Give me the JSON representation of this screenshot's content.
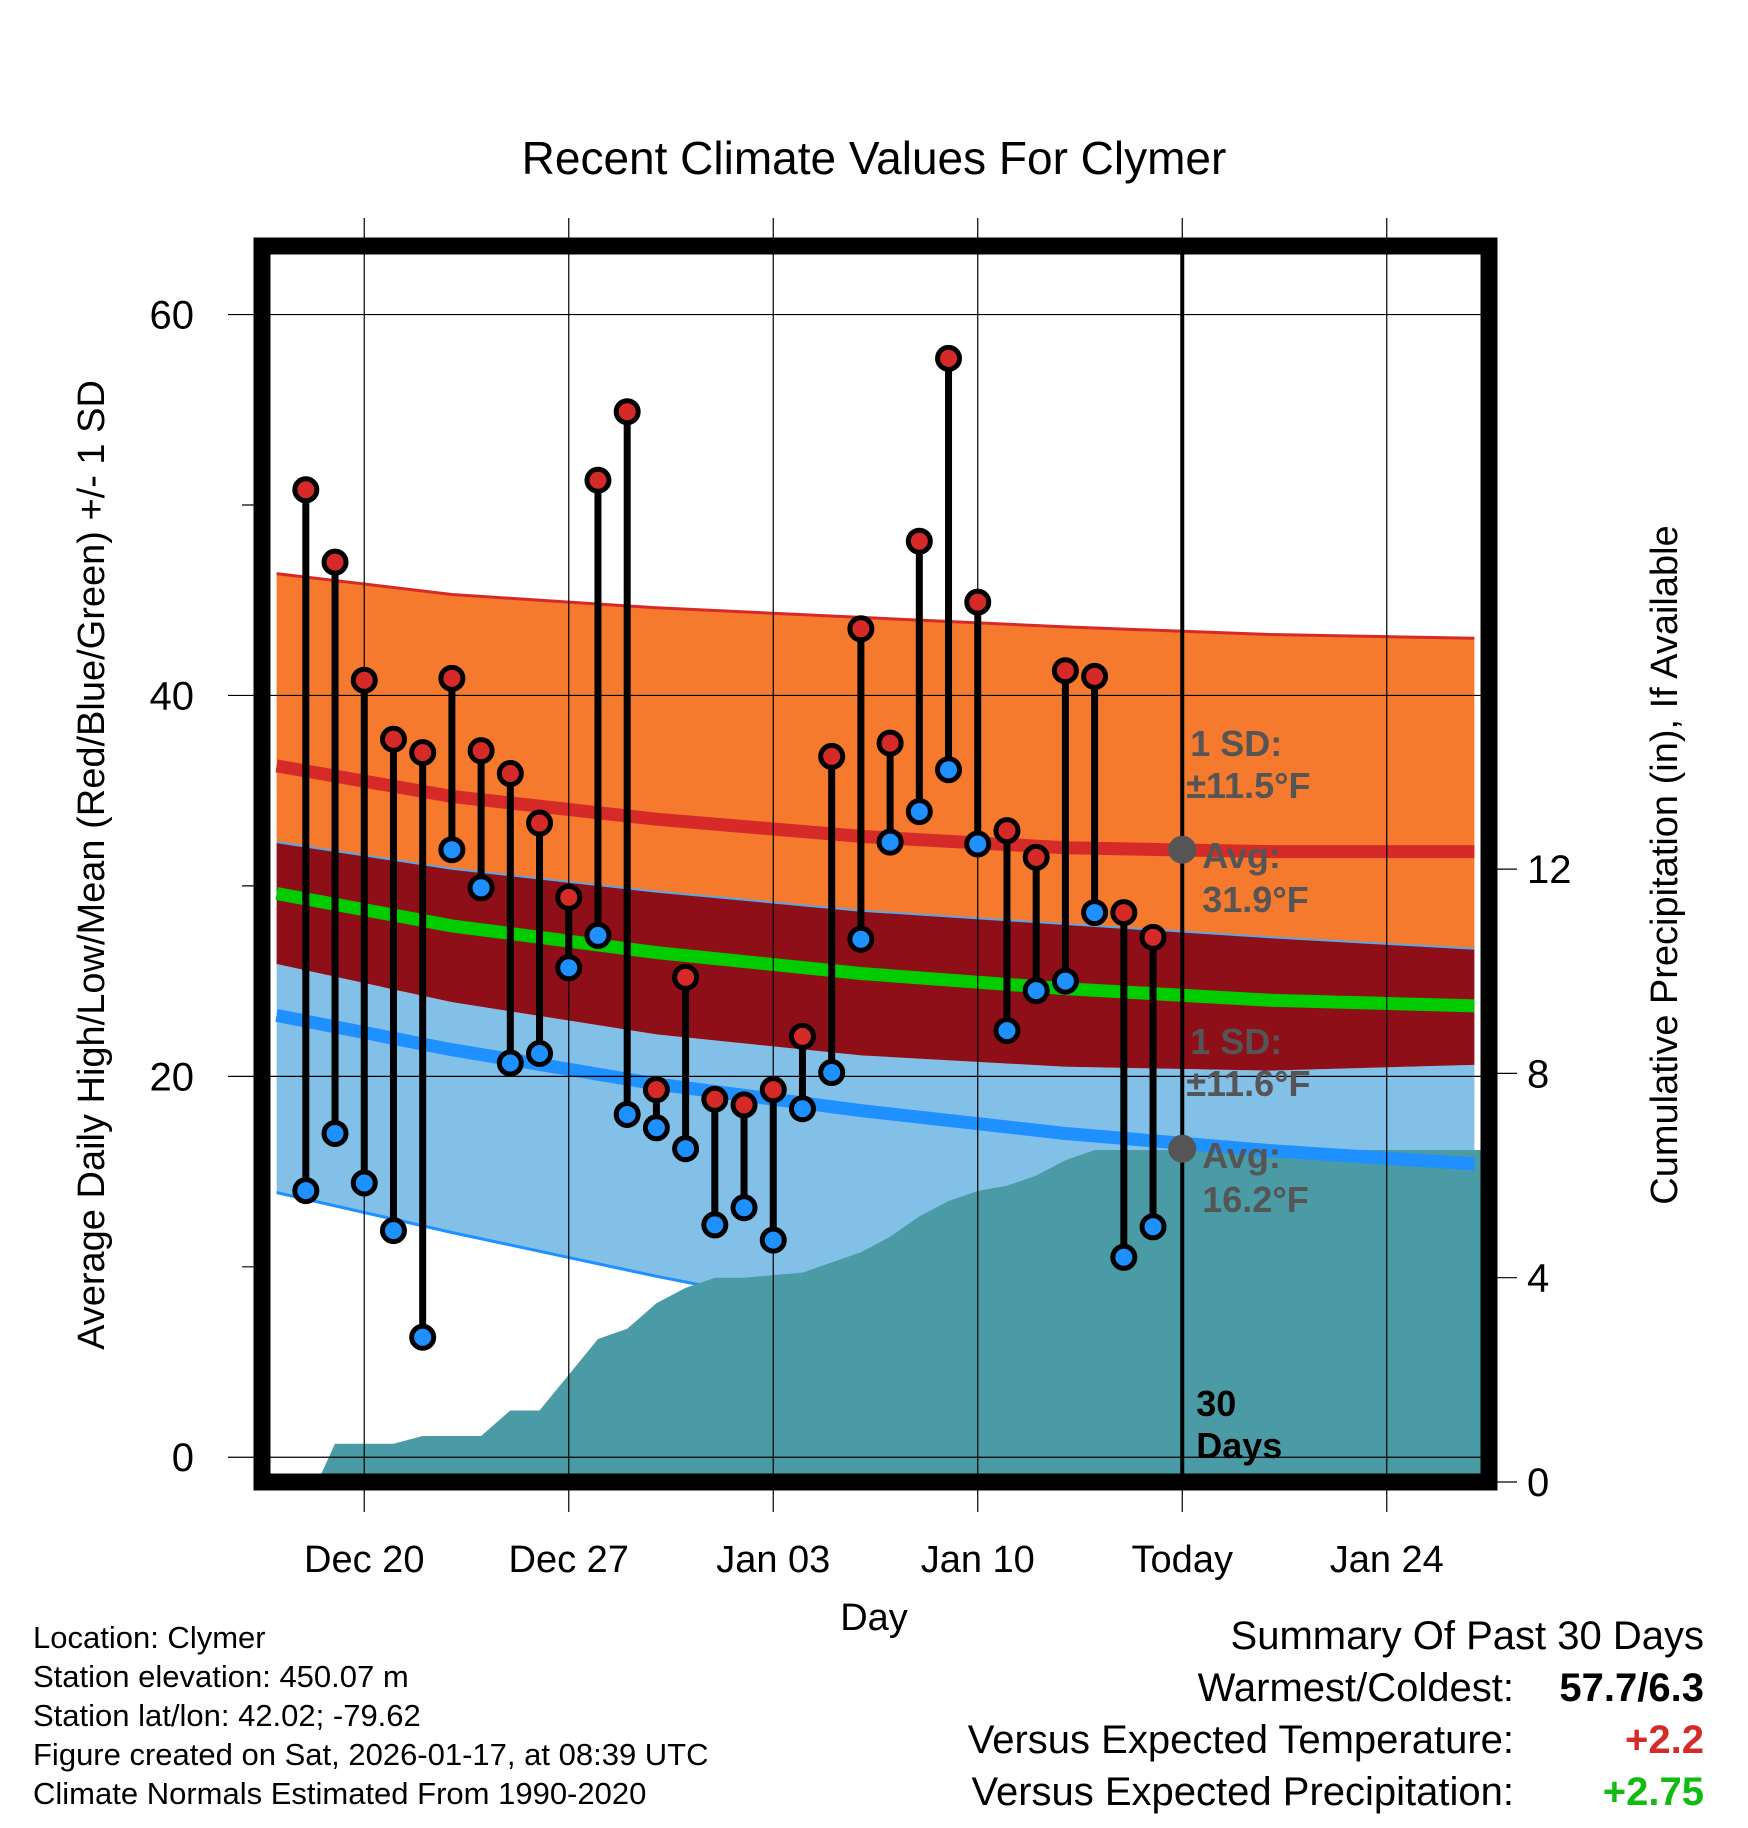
{
  "chart_data": {
    "type": "line",
    "title": "Recent Climate Values For Clymer",
    "xlabel": "Day",
    "ylabel": "Average Daily High/Low/Mean (Red/Blue/Green) +/- 1 SD",
    "ylabel_right": "Cumulative Precipitation (in), If Available",
    "x_range": [
      -3.5,
      38.5
    ],
    "ylim": [
      -1.3,
      63.6
    ],
    "ylim_right": [
      0,
      24.2
    ],
    "x_ticks": [
      {
        "x": 0,
        "label": "Dec 20"
      },
      {
        "x": 7,
        "label": "Dec 27"
      },
      {
        "x": 14,
        "label": "Jan 03"
      },
      {
        "x": 21,
        "label": "Jan 10"
      },
      {
        "x": 28,
        "label": "Today"
      },
      {
        "x": 35,
        "label": "Jan 24"
      }
    ],
    "y_ticks": [
      0,
      20,
      40,
      60
    ],
    "y_minor_ticks": [
      10,
      30,
      50
    ],
    "y_ticks_right": [
      0,
      4,
      8,
      12
    ],
    "today_x": 28,
    "today_label": "30\nDays",
    "normal_high": {
      "x": [
        -3,
        3,
        10,
        17,
        24,
        31,
        38
      ],
      "mean": [
        36.3,
        34.7,
        33.5,
        32.6,
        32.0,
        31.8,
        31.8
      ],
      "upper": [
        46.4,
        45.3,
        44.6,
        44.1,
        43.6,
        43.2,
        43.0
      ],
      "lower": [
        32.3,
        30.9,
        29.7,
        28.7,
        28.0,
        27.3,
        26.7
      ]
    },
    "normal_mean": {
      "x": [
        -3,
        3,
        10,
        17,
        24,
        31,
        38
      ],
      "values": [
        29.6,
        27.9,
        26.5,
        25.4,
        24.6,
        24.0,
        23.7
      ]
    },
    "normal_low": {
      "x": [
        -3,
        3,
        10,
        17,
        24,
        31,
        38
      ],
      "mean": [
        23.2,
        21.4,
        19.6,
        18.2,
        17.0,
        16.1,
        15.4
      ],
      "upper": [
        25.9,
        23.9,
        22.2,
        21.1,
        20.5,
        20.3,
        20.6
      ],
      "lower": [
        13.9,
        11.8,
        9.5,
        7.4,
        5.6,
        4.5,
        3.8
      ]
    },
    "precip": {
      "x": [
        -1.6,
        -1,
        1,
        2,
        3,
        4,
        5,
        6,
        7,
        8,
        9,
        10,
        11,
        12,
        13,
        14,
        15,
        16,
        17,
        18,
        19,
        20,
        21,
        22,
        23,
        24,
        25,
        26,
        27,
        28,
        38.5
      ],
      "values": [
        0,
        0.75,
        0.75,
        0.9,
        0.9,
        0.9,
        1.4,
        1.4,
        2.1,
        2.8,
        3.0,
        3.5,
        3.8,
        4.0,
        4.0,
        4.05,
        4.1,
        4.3,
        4.5,
        4.8,
        5.2,
        5.5,
        5.7,
        5.8,
        6.0,
        6.3,
        6.5,
        6.5,
        6.5,
        6.5,
        6.5
      ]
    },
    "observed": {
      "days": [
        -2,
        -1,
        0,
        1,
        2,
        3,
        4,
        5,
        6,
        7,
        8,
        9,
        10,
        11,
        12,
        13,
        14,
        15,
        16,
        17,
        18,
        19,
        20,
        21,
        22,
        23,
        24,
        25,
        26,
        27
      ],
      "high": [
        50.8,
        47.0,
        40.8,
        37.7,
        37.0,
        40.9,
        37.1,
        35.9,
        33.3,
        29.4,
        51.3,
        54.9,
        19.3,
        25.2,
        18.8,
        18.5,
        19.3,
        22.1,
        36.8,
        43.5,
        37.5,
        48.1,
        57.7,
        44.9,
        32.9,
        31.5,
        41.3,
        41.0,
        28.6,
        27.3
      ],
      "low": [
        14.0,
        17.0,
        14.4,
        11.9,
        6.3,
        31.9,
        29.9,
        20.7,
        21.2,
        25.7,
        27.4,
        18.0,
        17.3,
        16.2,
        12.2,
        13.1,
        11.4,
        18.3,
        20.2,
        27.2,
        32.3,
        33.9,
        36.1,
        32.2,
        22.4,
        24.5,
        25.0,
        28.6,
        10.5,
        12.1
      ]
    },
    "annotations": {
      "high_sd_title": "1 SD:",
      "high_sd_value": "±11.5°F",
      "high_avg_title": "Avg:",
      "high_avg_value": "31.9°F",
      "high_avg": 31.9,
      "low_sd_title": "1 SD:",
      "low_sd_value": "±11.6°F",
      "low_avg_title": "Avg:",
      "low_avg_value": "16.2°F",
      "low_avg": 16.2
    },
    "colors": {
      "high_band": "#f57a2e",
      "overlap_band": "#8e0f17",
      "low_band": "#82c0e8",
      "high_line": "#d62a28",
      "low_line": "#1e90ff",
      "mean_line": "#00cc00",
      "precip": "#4a9ba5",
      "high_dot": "#d62a28",
      "low_dot": "#1e90ff",
      "annotation": "#555555"
    }
  },
  "footer": {
    "location": "Location: Clymer",
    "elevation": "Station elevation: 450.07 m",
    "latlon": "Station lat/lon: 42.02; -79.62",
    "created": "Figure created on Sat, 2026-01-17, at 08:39 UTC",
    "normals": "Climate Normals Estimated From 1990-2020"
  },
  "summary": {
    "title": "Summary Of Past 30 Days",
    "warmest_label": "Warmest/Coldest:",
    "warmest_value": "57.7/6.3",
    "temp_label": "Versus Expected Temperature:",
    "temp_value": "+2.2",
    "temp_color": "#d62a28",
    "precip_label": "Versus Expected Precipitation:",
    "precip_value": "+2.75",
    "precip_color": "#11bb11"
  }
}
